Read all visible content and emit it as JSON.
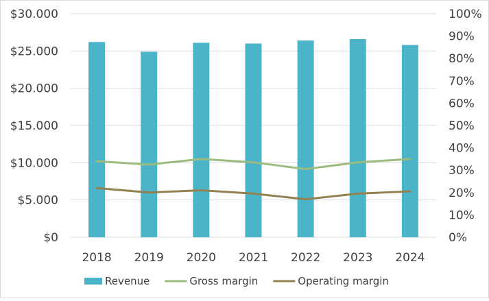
{
  "chart_data": {
    "type": "bar",
    "categories": [
      "2018",
      "2019",
      "2020",
      "2021",
      "2022",
      "2023",
      "2024"
    ],
    "series": [
      {
        "name": "Revenue",
        "type": "bar",
        "axis": "left",
        "color": "#4bb4c9",
        "values": [
          26200,
          24900,
          26100,
          26000,
          26400,
          26600,
          25800
        ]
      },
      {
        "name": "Gross margin",
        "type": "line",
        "axis": "right",
        "color": "#9cbb7e",
        "values": [
          0.34,
          0.325,
          0.35,
          0.335,
          0.305,
          0.335,
          0.35
        ]
      },
      {
        "name": "Operating margin",
        "type": "line",
        "axis": "right",
        "color": "#948152",
        "values": [
          0.22,
          0.2,
          0.21,
          0.195,
          0.17,
          0.195,
          0.205
        ]
      }
    ],
    "y_left": {
      "ylim": [
        0,
        30000
      ],
      "ticks": [
        0,
        5000,
        10000,
        15000,
        20000,
        25000,
        30000
      ],
      "tick_labels": [
        "$0",
        "$5.000",
        "$10.000",
        "$15.000",
        "$20.000",
        "$25.000",
        "$30.000"
      ]
    },
    "y_right": {
      "ylim": [
        0,
        1
      ],
      "ticks": [
        0,
        0.1,
        0.2,
        0.3,
        0.4,
        0.5,
        0.6,
        0.7,
        0.8,
        0.9,
        1.0
      ],
      "tick_labels": [
        "0%",
        "10%",
        "20%",
        "30%",
        "40%",
        "50%",
        "60%",
        "70%",
        "80%",
        "90%",
        "100%"
      ]
    },
    "title": "",
    "xlabel": "",
    "ylabel": "",
    "grid": true,
    "legend": "bottom"
  },
  "colors": {
    "gridline": "#d9d9d9",
    "text": "#404040"
  }
}
